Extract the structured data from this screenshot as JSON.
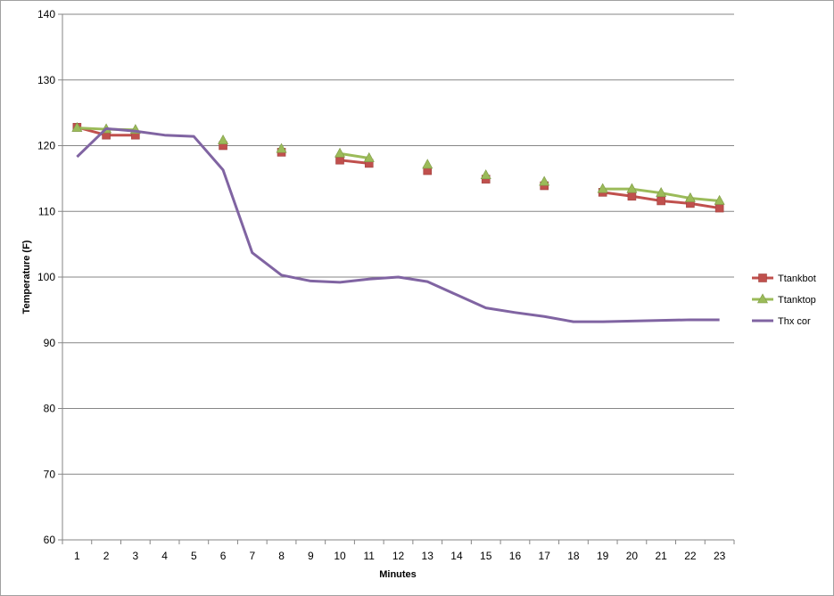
{
  "chart_data": {
    "type": "line",
    "title": "",
    "xlabel": "Minutes",
    "ylabel": "Temperature (F)",
    "x": [
      "1",
      "2",
      "3",
      "4",
      "5",
      "6",
      "7",
      "8",
      "9",
      "10",
      "11",
      "12",
      "13",
      "14",
      "15",
      "16",
      "17",
      "18",
      "19",
      "20",
      "21",
      "22",
      "23"
    ],
    "ylim": [
      60,
      140
    ],
    "yticks": [
      60,
      70,
      80,
      90,
      100,
      110,
      120,
      130,
      140
    ],
    "grid": true,
    "legend_position": "right",
    "series": [
      {
        "name": "Ttankbot",
        "color": "#C0504D",
        "marker": "square",
        "values": [
          122.8,
          121.6,
          121.6,
          null,
          null,
          120.0,
          null,
          119.0,
          null,
          117.8,
          117.3,
          null,
          116.2,
          null,
          114.9,
          null,
          113.9,
          null,
          112.9,
          112.3,
          111.6,
          111.2,
          110.5
        ]
      },
      {
        "name": "Ttanktop",
        "color": "#9BBB59",
        "marker": "triangle",
        "values": [
          122.7,
          122.5,
          122.4,
          null,
          null,
          120.8,
          null,
          119.5,
          null,
          118.8,
          118.1,
          null,
          117.1,
          null,
          115.5,
          null,
          114.5,
          null,
          113.4,
          113.4,
          112.8,
          112.0,
          111.6
        ]
      },
      {
        "name": "Thx cor",
        "color": "#8064A2",
        "marker": "none",
        "values": [
          118.3,
          122.6,
          122.2,
          121.6,
          121.4,
          116.3,
          103.7,
          100.3,
          99.4,
          99.2,
          99.7,
          100.0,
          99.3,
          97.3,
          95.3,
          94.6,
          94.0,
          93.2,
          93.2,
          93.3,
          93.4,
          93.5,
          93.5
        ]
      }
    ]
  }
}
